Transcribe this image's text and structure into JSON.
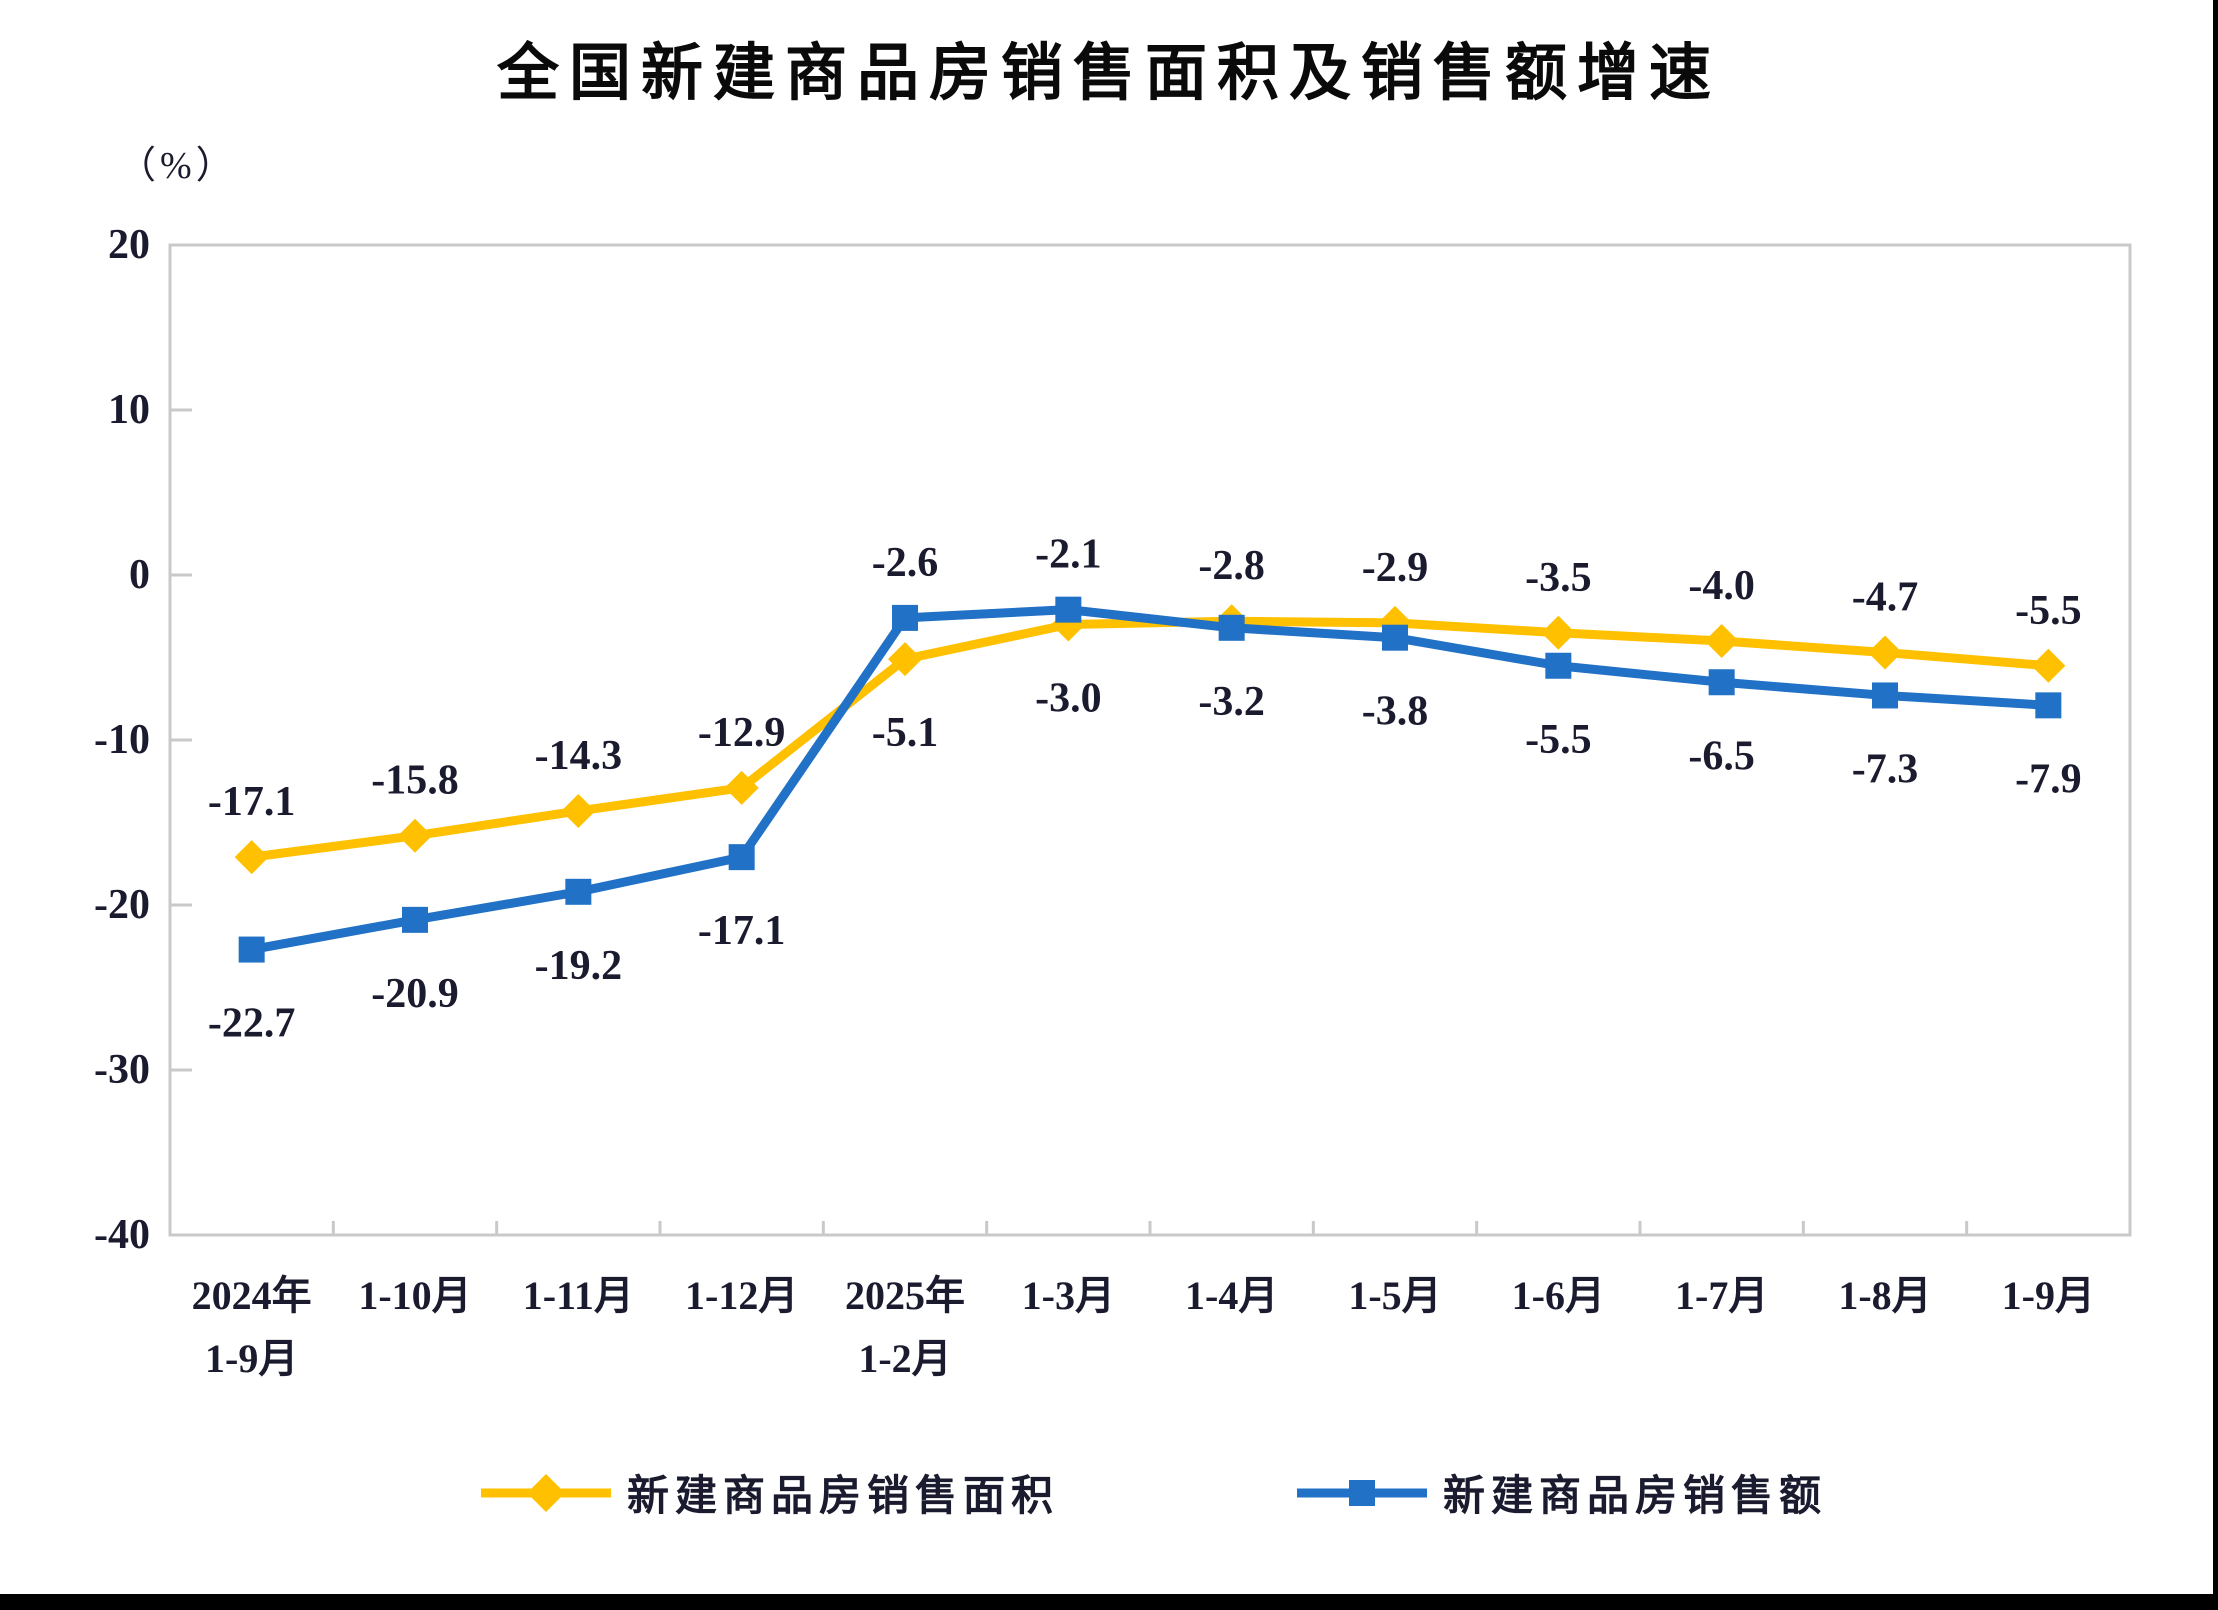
{
  "chart_data": {
    "type": "line",
    "title": "全国新建商品房销售面积及销售额增速",
    "unit_label": "（%）",
    "categories": [
      "2024年\n1-9月",
      "1-10月",
      "1-11月",
      "1-12月",
      "2025年\n1-2月",
      "1-3月",
      "1-4月",
      "1-5月",
      "1-6月",
      "1-7月",
      "1-8月",
      "1-9月"
    ],
    "ylim": [
      -40,
      20
    ],
    "y_ticks": [
      20,
      10,
      0,
      -10,
      -20,
      -30,
      -40
    ],
    "grid": false,
    "legend_position": "bottom",
    "axis_color": "#c9c9c9",
    "text_color": "#1b1b2f",
    "series": [
      {
        "name": "新建商品房销售面积",
        "color": "#FFC000",
        "marker": "diamond",
        "values": [
          -17.1,
          -15.8,
          -14.3,
          -12.9,
          -5.1,
          -3.0,
          -2.8,
          -2.9,
          -3.5,
          -4.0,
          -4.7,
          -5.5
        ],
        "label_side": [
          "above",
          "above",
          "above",
          "above",
          "below",
          "below",
          "above",
          "above",
          "above",
          "above",
          "above",
          "above"
        ]
      },
      {
        "name": "新建商品房销售额",
        "color": "#2171C7",
        "marker": "square",
        "values": [
          -22.7,
          -20.9,
          -19.2,
          -17.1,
          -2.6,
          -2.1,
          -3.2,
          -3.8,
          -5.5,
          -6.5,
          -7.3,
          -7.9
        ],
        "label_side": [
          "below",
          "below",
          "below",
          "below",
          "above",
          "above",
          "below",
          "below",
          "below",
          "below",
          "below",
          "below"
        ]
      }
    ]
  }
}
